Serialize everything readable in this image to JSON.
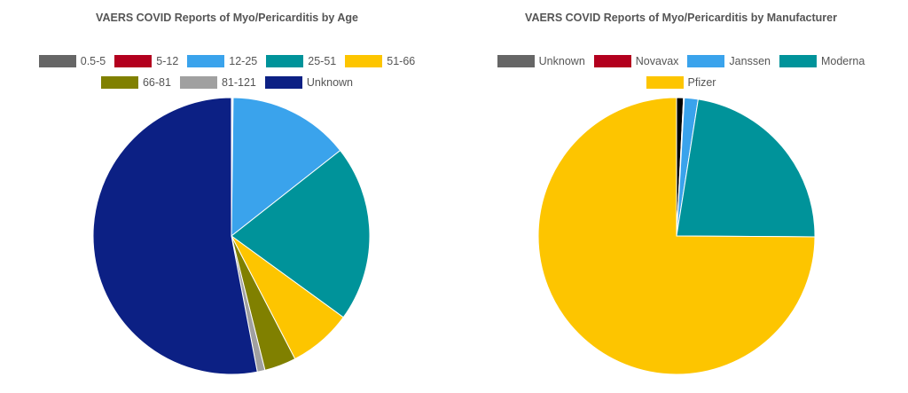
{
  "chart_data": [
    {
      "type": "pie",
      "title": "VAERS COVID Reports of Myo/Pericarditis by Age",
      "legend_position": "top",
      "labels": [
        "0.5-5",
        "5-12",
        "12-25",
        "25-51",
        "51-66",
        "66-81",
        "81-121",
        "Unknown"
      ],
      "values": [
        0.1,
        0.1,
        14.2,
        20.6,
        7.4,
        3.7,
        0.9,
        53.0
      ],
      "colors": [
        "#666666",
        "#b3001e",
        "#3aa3ec",
        "#00939a",
        "#fdc500",
        "#808000",
        "#a0a0a0",
        "#0c2084"
      ]
    },
    {
      "type": "pie",
      "title": "VAERS COVID Reports of Myo/Pericarditis by Manufacturer",
      "legend_position": "top",
      "labels": [
        "Unknown",
        "Novavax",
        "Janssen",
        "Moderna",
        "Pfizer"
      ],
      "values": [
        0.8,
        0.1,
        1.6,
        22.6,
        74.9
      ],
      "colors": [
        "#000000",
        "#b3001e",
        "#3aa3ec",
        "#00939a",
        "#fdc500"
      ],
      "legend_colors": [
        "#666666",
        "#b3001e",
        "#3aa3ec",
        "#00939a",
        "#fdc500"
      ]
    }
  ]
}
